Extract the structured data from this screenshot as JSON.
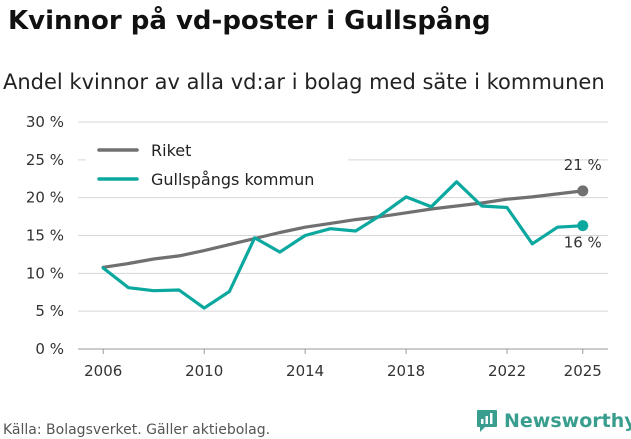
{
  "header": {
    "title": "Kvinnor på vd-poster i Gullspång",
    "subtitle": "Andel kvinnor av alla vd:ar i bolag med säte i kommunen"
  },
  "footer": {
    "source": "Källa: Bolagsverket. Gäller aktiebolag.",
    "brand": "Newsworthy"
  },
  "colors": {
    "riket": "#707070",
    "gullspang": "#0aa89e",
    "brand": "#3a9e8f"
  },
  "chart_data": {
    "type": "line",
    "title": "Kvinnor på vd-poster i Gullspång",
    "subtitle": "Andel kvinnor av alla vd:ar i bolag med säte i kommunen",
    "xlabel": "",
    "ylabel": "",
    "x": [
      2006,
      2007,
      2008,
      2009,
      2010,
      2011,
      2012,
      2013,
      2014,
      2015,
      2016,
      2017,
      2018,
      2019,
      2020,
      2021,
      2022,
      2023,
      2024,
      2025
    ],
    "xlim": [
      2005,
      2026
    ],
    "ylim": [
      0,
      30
    ],
    "x_ticks": [
      2006,
      2010,
      2014,
      2018,
      2022,
      2025
    ],
    "x_tick_labels": [
      "2006",
      "2010",
      "2014",
      "2018",
      "2022",
      "2025"
    ],
    "y_ticks": [
      0,
      5,
      10,
      15,
      20,
      25,
      30
    ],
    "y_tick_labels": [
      "0 %",
      "5 %",
      "10 %",
      "15 %",
      "20 %",
      "25 %",
      "30 %"
    ],
    "grid": "horizontal",
    "legend_position": "top-left",
    "series": [
      {
        "name": "Riket",
        "color": "#707070",
        "values": [
          10.8,
          11.3,
          11.9,
          12.3,
          13.0,
          13.8,
          14.6,
          15.4,
          16.1,
          16.6,
          17.1,
          17.5,
          18.0,
          18.5,
          18.9,
          19.3,
          19.8,
          20.1,
          20.5,
          20.9
        ],
        "end_label": "21 %"
      },
      {
        "name": "Gullspångs kommun",
        "color": "#0aa89e",
        "values": [
          10.7,
          8.1,
          7.7,
          7.8,
          5.4,
          7.6,
          14.7,
          12.8,
          15.0,
          15.9,
          15.6,
          17.7,
          20.1,
          18.8,
          22.1,
          18.9,
          18.7,
          13.9,
          16.1,
          16.3
        ],
        "end_label": "16 %"
      }
    ]
  }
}
